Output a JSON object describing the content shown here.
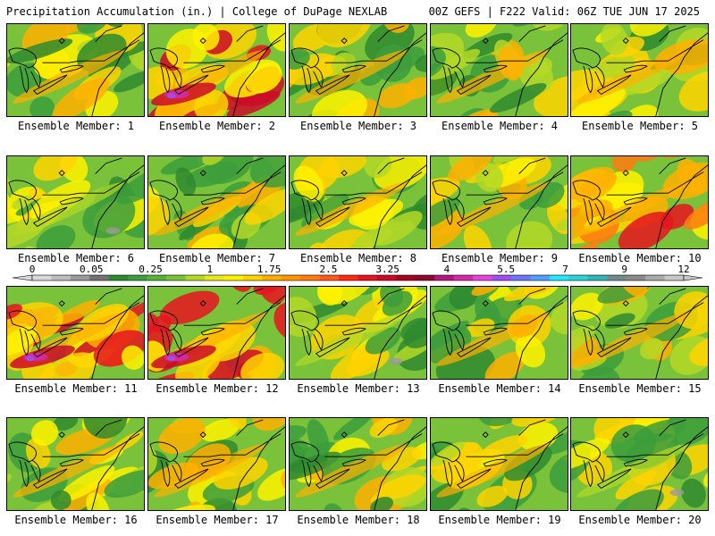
{
  "header": {
    "title": "Precipitation Accumulation (in.) | College of DuPage NEXLAB",
    "run_info": "00Z GEFS | F222 Valid: 06Z TUE JUN 17 2025"
  },
  "panels": [
    {
      "label": "Ensemble Member: 1",
      "character": "moderate"
    },
    {
      "label": "Ensemble Member: 2",
      "character": "heavy"
    },
    {
      "label": "Ensemble Member: 3",
      "character": "moderate"
    },
    {
      "label": "Ensemble Member: 4",
      "character": "moderate"
    },
    {
      "label": "Ensemble Member: 5",
      "character": "moderate"
    },
    {
      "label": "Ensemble Member: 6",
      "character": "light"
    },
    {
      "label": "Ensemble Member: 7",
      "character": "moderate"
    },
    {
      "label": "Ensemble Member: 8",
      "character": "moderate"
    },
    {
      "label": "Ensemble Member: 9",
      "character": "moderate"
    },
    {
      "label": "Ensemble Member: 10",
      "character": "wet"
    },
    {
      "label": "Ensemble Member: 11",
      "character": "heavy"
    },
    {
      "label": "Ensemble Member: 12",
      "character": "heavy"
    },
    {
      "label": "Ensemble Member: 13",
      "character": "light"
    },
    {
      "label": "Ensemble Member: 14",
      "character": "moderate"
    },
    {
      "label": "Ensemble Member: 15",
      "character": "moderate"
    },
    {
      "label": "Ensemble Member: 16",
      "character": "moderate"
    },
    {
      "label": "Ensemble Member: 17",
      "character": "moderate"
    },
    {
      "label": "Ensemble Member: 18",
      "character": "moderate"
    },
    {
      "label": "Ensemble Member: 19",
      "character": "moderate"
    },
    {
      "label": "Ensemble Member: 20",
      "character": "light"
    }
  ],
  "colorbar": {
    "labels": [
      "0",
      "0.05",
      "0.25",
      "1",
      "1.75",
      "2.5",
      "3.25",
      "4",
      "5.5",
      "7",
      "9",
      "12"
    ],
    "colors": [
      "#d9d9d9",
      "#bdbdbd",
      "#9b9b9b",
      "#737373",
      "#2f8a2f",
      "#3c9e3c",
      "#57b23a",
      "#7ac23a",
      "#b4d826",
      "#e6ea1c",
      "#fff200",
      "#ffd400",
      "#ffb000",
      "#ff9600",
      "#ff7a10",
      "#ff5a1e",
      "#ff2a14",
      "#e6141e",
      "#cc0a28",
      "#a5051e",
      "#8c0a32",
      "#b4187d",
      "#d22aaa",
      "#e646d7",
      "#a050f0",
      "#6e78f5",
      "#50a0ff",
      "#28e6ff",
      "#2dd2d7",
      "#32b4b9",
      "#6e8c8c",
      "#8c8c8c",
      "#aaaaaa",
      "#c8c8c8"
    ]
  }
}
